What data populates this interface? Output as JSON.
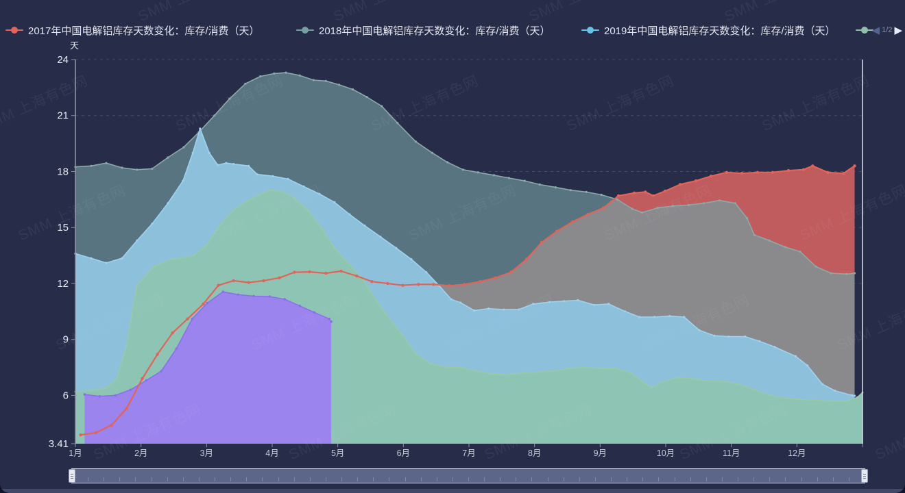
{
  "legend": {
    "items": [
      {
        "label": "2017年中国电解铝库存天数变化：库存/消费（天）",
        "color": "#e0635c"
      },
      {
        "label": "2018年中国电解铝库存天数变化：库存/消费（天）",
        "color": "#73a0a3"
      },
      {
        "label": "2019年中国电解铝库存天数变化：库存/消费（天）",
        "color": "#66c3ea"
      },
      {
        "label": "",
        "color": "#8dc1a9"
      }
    ],
    "pager": {
      "prev": "◀",
      "page": "1/2",
      "next": "▶"
    }
  },
  "watermark": {
    "text": "SMM 上海有色网"
  },
  "y_axis": {
    "name": "天",
    "labels": [
      "24",
      "21",
      "18",
      "15",
      "12",
      "9",
      "6",
      "3.41"
    ],
    "values": [
      24,
      21,
      18,
      15,
      12,
      9,
      6,
      3.41
    ],
    "grid_values": [
      24,
      21,
      18,
      15,
      12,
      9,
      6
    ]
  },
  "x_axis": {
    "labels": [
      "1月",
      "2月",
      "3月",
      "4月",
      "5月",
      "6月",
      "7月",
      "8月",
      "9月",
      "10月",
      "11月",
      "12月"
    ]
  },
  "chart_data": {
    "type": "area",
    "title": "",
    "ylabel": "天",
    "ylim": [
      3.41,
      24
    ],
    "x_unit": "month (1-13 = Jan-Dec week resolution)",
    "grid": "dashed horizontal",
    "legend_position": "top",
    "overlap_colors": {
      "red_over_teal": "#c05c5e",
      "red_and_teal_over_blue": "#8a8a8c"
    },
    "series": [
      {
        "id": "y2018",
        "name": "2018年中国电解铝库存天数变化：库存/消费（天）",
        "style": "area",
        "line_color": "#8aaaaa",
        "fill_color": "#587480",
        "points": [
          [
            1,
            18.25
          ],
          [
            1.24,
            18.3
          ],
          [
            1.47,
            18.45
          ],
          [
            1.71,
            18.2
          ],
          [
            1.94,
            18.1
          ],
          [
            2.17,
            18.15
          ],
          [
            2.41,
            18.75
          ],
          [
            2.65,
            19.3
          ],
          [
            2.88,
            20.1
          ],
          [
            3.12,
            21.0
          ],
          [
            3.35,
            21.9
          ],
          [
            3.59,
            22.7
          ],
          [
            3.82,
            23.1
          ],
          [
            4.03,
            23.25
          ],
          [
            4.21,
            23.3
          ],
          [
            4.42,
            23.15
          ],
          [
            4.63,
            22.9
          ],
          [
            4.82,
            22.85
          ],
          [
            5.02,
            22.65
          ],
          [
            5.23,
            22.4
          ],
          [
            5.44,
            22.0
          ],
          [
            5.67,
            21.5
          ],
          [
            5.91,
            20.6
          ],
          [
            6.19,
            19.6
          ],
          [
            6.44,
            19.0
          ],
          [
            6.67,
            18.5
          ],
          [
            6.91,
            18.1
          ],
          [
            7.14,
            17.95
          ],
          [
            7.38,
            17.8
          ],
          [
            7.61,
            17.65
          ],
          [
            7.85,
            17.5
          ],
          [
            8.08,
            17.3
          ],
          [
            8.32,
            17.15
          ],
          [
            8.55,
            17.0
          ],
          [
            8.79,
            16.9
          ],
          [
            9.02,
            16.75
          ],
          [
            9.26,
            16.5
          ],
          [
            9.49,
            16.0
          ],
          [
            9.64,
            15.8
          ],
          [
            9.88,
            16.05
          ],
          [
            10.11,
            16.15
          ],
          [
            10.35,
            16.2
          ],
          [
            10.58,
            16.3
          ],
          [
            10.82,
            16.45
          ],
          [
            11.06,
            16.3
          ],
          [
            11.24,
            15.5
          ],
          [
            11.35,
            14.6
          ],
          [
            11.58,
            14.3
          ],
          [
            11.82,
            13.95
          ],
          [
            12.05,
            13.7
          ],
          [
            12.29,
            12.9
          ],
          [
            12.52,
            12.55
          ],
          [
            12.76,
            12.5
          ],
          [
            12.88,
            12.55
          ]
        ]
      },
      {
        "id": "gray_base",
        "name": "",
        "style": "area",
        "line_color": "#7fa6a6",
        "fill_color": "#8a8a8c",
        "points": []
      },
      {
        "id": "y2019",
        "name": "2019年中国电解铝库存天数变化：库存/消费（天）",
        "style": "area",
        "line_color": "#9ed2f0",
        "fill_color": "#8cc0db",
        "points": [
          [
            1,
            13.6
          ],
          [
            1.24,
            13.35
          ],
          [
            1.47,
            13.1
          ],
          [
            1.71,
            13.35
          ],
          [
            1.94,
            14.3
          ],
          [
            2.17,
            15.2
          ],
          [
            2.41,
            16.3
          ],
          [
            2.64,
            17.5
          ],
          [
            2.79,
            19.0
          ],
          [
            2.9,
            20.3
          ],
          [
            3.04,
            19.0
          ],
          [
            3.17,
            18.35
          ],
          [
            3.3,
            18.45
          ],
          [
            3.41,
            18.4
          ],
          [
            3.64,
            18.3
          ],
          [
            3.77,
            17.85
          ],
          [
            4.01,
            17.75
          ],
          [
            4.24,
            17.6
          ],
          [
            4.48,
            17.2
          ],
          [
            4.72,
            16.8
          ],
          [
            4.95,
            16.35
          ],
          [
            5.18,
            15.7
          ],
          [
            5.41,
            15.1
          ],
          [
            5.65,
            14.5
          ],
          [
            5.89,
            13.9
          ],
          [
            6.12,
            13.3
          ],
          [
            6.35,
            12.6
          ],
          [
            6.54,
            11.9
          ],
          [
            6.73,
            11.15
          ],
          [
            6.87,
            10.97
          ],
          [
            7.08,
            10.55
          ],
          [
            7.3,
            10.65
          ],
          [
            7.53,
            10.6
          ],
          [
            7.76,
            10.6
          ],
          [
            7.98,
            10.9
          ],
          [
            8.23,
            11.0
          ],
          [
            8.45,
            11.05
          ],
          [
            8.66,
            11.1
          ],
          [
            8.91,
            10.85
          ],
          [
            9.13,
            10.9
          ],
          [
            9.38,
            10.5
          ],
          [
            9.6,
            10.2
          ],
          [
            9.83,
            10.2
          ],
          [
            10.06,
            10.25
          ],
          [
            10.28,
            10.2
          ],
          [
            10.51,
            9.5
          ],
          [
            10.74,
            9.2
          ],
          [
            10.96,
            9.15
          ],
          [
            11.21,
            9.15
          ],
          [
            11.43,
            8.9
          ],
          [
            11.66,
            8.6
          ],
          [
            11.98,
            8.1
          ],
          [
            12.16,
            7.6
          ],
          [
            12.39,
            6.6
          ],
          [
            12.58,
            6.25
          ],
          [
            12.84,
            6.0
          ],
          [
            12.88,
            5.98
          ]
        ]
      },
      {
        "id": "y2020",
        "name": "",
        "style": "area",
        "line_color": "#9acaa2",
        "fill_color": "#8ec4b4",
        "points": [
          [
            1,
            6.2
          ],
          [
            1.24,
            6.25
          ],
          [
            1.47,
            6.4
          ],
          [
            1.63,
            6.9
          ],
          [
            1.78,
            8.6
          ],
          [
            1.94,
            11.9
          ],
          [
            2.2,
            12.9
          ],
          [
            2.46,
            13.3
          ],
          [
            2.59,
            13.35
          ],
          [
            2.81,
            13.5
          ],
          [
            3.01,
            14.1
          ],
          [
            3.2,
            15.1
          ],
          [
            3.4,
            15.9
          ],
          [
            3.61,
            16.4
          ],
          [
            3.8,
            16.75
          ],
          [
            3.98,
            17.0
          ],
          [
            4.16,
            16.9
          ],
          [
            4.34,
            16.55
          ],
          [
            4.55,
            15.9
          ],
          [
            4.76,
            14.9
          ],
          [
            4.95,
            13.9
          ],
          [
            5.18,
            13.0
          ],
          [
            5.39,
            12.2
          ],
          [
            5.49,
            11.6
          ],
          [
            5.72,
            10.4
          ],
          [
            5.97,
            9.3
          ],
          [
            6.19,
            8.2
          ],
          [
            6.41,
            7.7
          ],
          [
            6.64,
            7.5
          ],
          [
            6.87,
            7.5
          ],
          [
            7.11,
            7.3
          ],
          [
            7.34,
            7.15
          ],
          [
            7.59,
            7.1
          ],
          [
            7.81,
            7.2
          ],
          [
            8.06,
            7.25
          ],
          [
            8.29,
            7.3
          ],
          [
            8.53,
            7.45
          ],
          [
            8.76,
            7.5
          ],
          [
            9.0,
            7.45
          ],
          [
            9.23,
            7.45
          ],
          [
            9.47,
            7.2
          ],
          [
            9.7,
            6.6
          ],
          [
            9.78,
            6.4
          ],
          [
            9.94,
            6.7
          ],
          [
            10.17,
            6.95
          ],
          [
            10.41,
            6.9
          ],
          [
            10.64,
            6.75
          ],
          [
            10.88,
            6.75
          ],
          [
            11.11,
            6.6
          ],
          [
            11.35,
            6.3
          ],
          [
            11.58,
            6.0
          ],
          [
            11.82,
            5.85
          ],
          [
            12.05,
            5.78
          ],
          [
            12.29,
            5.74
          ],
          [
            12.52,
            5.7
          ],
          [
            12.76,
            5.68
          ],
          [
            12.92,
            5.9
          ],
          [
            13.0,
            6.15
          ]
        ]
      },
      {
        "id": "y2021",
        "name": "",
        "style": "area",
        "line_color": "#8b6fe8",
        "fill_color": "#9c84ee",
        "points": [
          [
            1.14,
            6.05
          ],
          [
            1.37,
            5.95
          ],
          [
            1.61,
            6.0
          ],
          [
            1.84,
            6.3
          ],
          [
            2.08,
            6.8
          ],
          [
            2.31,
            7.3
          ],
          [
            2.54,
            8.5
          ],
          [
            2.78,
            10.1
          ],
          [
            3.01,
            10.95
          ],
          [
            3.25,
            11.55
          ],
          [
            3.48,
            11.4
          ],
          [
            3.72,
            11.32
          ],
          [
            3.96,
            11.3
          ],
          [
            4.19,
            11.15
          ],
          [
            4.42,
            10.8
          ],
          [
            4.64,
            10.45
          ],
          [
            4.87,
            10.1
          ],
          [
            4.9,
            9.95
          ]
        ]
      },
      {
        "id": "y2017",
        "name": "2017年中国电解铝库存天数变化：库存/消费（天）",
        "style": "line",
        "line_color": "#e06459",
        "fill_color": "none",
        "points": [
          [
            1.08,
            3.88
          ],
          [
            1.31,
            4.0
          ],
          [
            1.55,
            4.4
          ],
          [
            1.78,
            5.3
          ],
          [
            2.02,
            6.9
          ],
          [
            2.25,
            8.2
          ],
          [
            2.48,
            9.35
          ],
          [
            2.71,
            10.1
          ],
          [
            2.95,
            10.9
          ],
          [
            3.18,
            11.9
          ],
          [
            3.41,
            12.15
          ],
          [
            3.64,
            12.05
          ],
          [
            3.87,
            12.15
          ],
          [
            4.11,
            12.3
          ],
          [
            4.34,
            12.6
          ],
          [
            4.57,
            12.62
          ],
          [
            4.82,
            12.55
          ],
          [
            5.05,
            12.66
          ],
          [
            5.29,
            12.4
          ],
          [
            5.52,
            12.1
          ],
          [
            5.76,
            12.0
          ],
          [
            5.99,
            11.9
          ],
          [
            6.23,
            11.95
          ],
          [
            6.46,
            11.95
          ],
          [
            6.7,
            11.88
          ],
          [
            6.93,
            11.95
          ],
          [
            7.17,
            12.1
          ],
          [
            7.4,
            12.3
          ],
          [
            7.64,
            12.6
          ],
          [
            7.88,
            13.3
          ],
          [
            8.11,
            14.2
          ],
          [
            8.34,
            14.8
          ],
          [
            8.58,
            15.3
          ],
          [
            8.81,
            15.7
          ],
          [
            9.05,
            16.05
          ],
          [
            9.28,
            16.7
          ],
          [
            9.52,
            16.85
          ],
          [
            9.69,
            16.9
          ],
          [
            9.81,
            16.7
          ],
          [
            9.99,
            16.95
          ],
          [
            10.22,
            17.3
          ],
          [
            10.46,
            17.5
          ],
          [
            10.69,
            17.75
          ],
          [
            10.93,
            17.95
          ],
          [
            11.16,
            17.9
          ],
          [
            11.4,
            17.95
          ],
          [
            11.63,
            17.95
          ],
          [
            11.87,
            18.05
          ],
          [
            12.1,
            18.1
          ],
          [
            12.24,
            18.3
          ],
          [
            12.47,
            17.95
          ],
          [
            12.71,
            17.9
          ],
          [
            12.88,
            18.3
          ]
        ]
      }
    ]
  },
  "colors": {
    "background": "#272c49",
    "axis_line": "#8d93a6",
    "right_axis_line": "#d4d9e5",
    "grid_line": "rgba(255,255,255,0.15)",
    "y_label": "#e8eaf1",
    "x_label": "#c6cbd8"
  }
}
